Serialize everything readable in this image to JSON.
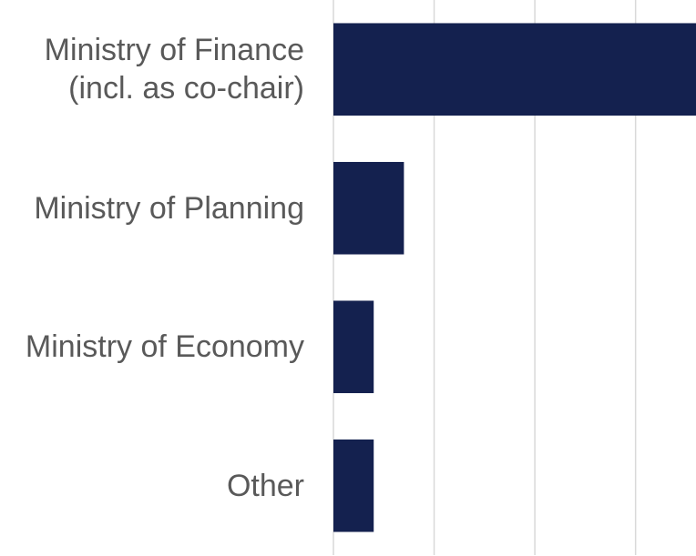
{
  "chart_data": {
    "type": "bar",
    "orientation": "horizontal",
    "categories": [
      "Ministry of Finance\n(incl. as co-chair)",
      "Ministry of Planning",
      "Ministry of Economy",
      "Other"
    ],
    "values": [
      36,
      7,
      4,
      4
    ],
    "color": "#14214f",
    "xlim": [
      0,
      36
    ],
    "xticks": [
      0,
      10,
      20,
      30
    ],
    "grid": true
  }
}
